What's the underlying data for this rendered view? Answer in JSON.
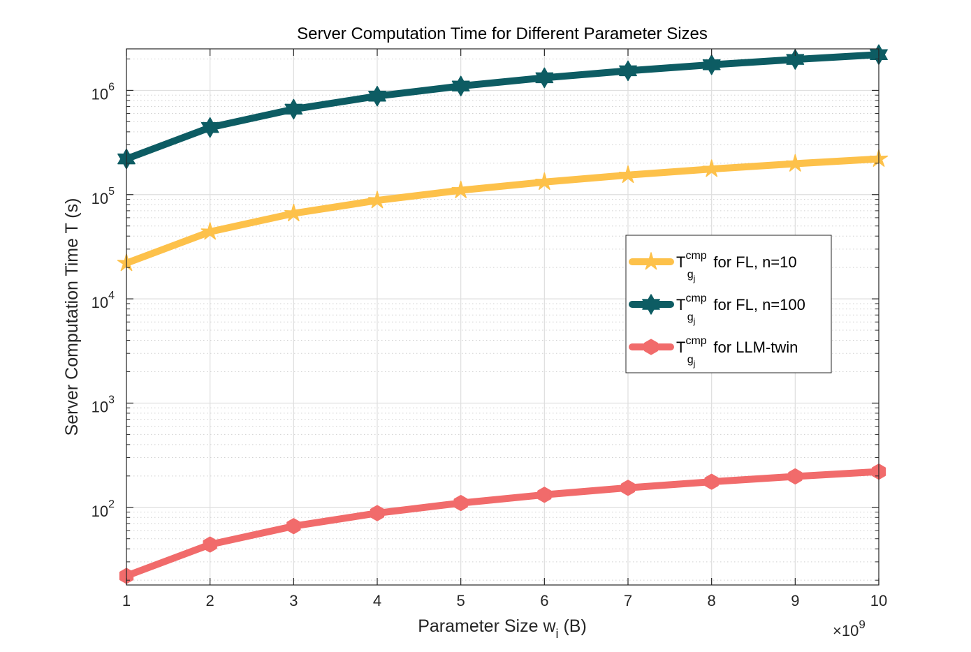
{
  "chart_data": {
    "type": "line",
    "title": "Server Computation Time for Different Parameter Sizes",
    "xlabel": {
      "main": "Parameter Size w",
      "sub": "i",
      "unit": " (B)"
    },
    "ylabel": "Server Computation Time T (s)",
    "x_multiplier": {
      "prefix": "×10",
      "exponent": "9"
    },
    "xlim": [
      1,
      10
    ],
    "ylim": [
      18,
      2500000
    ],
    "yscale": "log",
    "grid": true,
    "x_ticks": [
      1,
      2,
      3,
      4,
      5,
      6,
      7,
      8,
      9,
      10
    ],
    "x_tick_labels": [
      "1",
      "2",
      "3",
      "4",
      "5",
      "6",
      "7",
      "8",
      "9",
      "10"
    ],
    "y_ticks": [
      100,
      1000,
      10000,
      100000,
      1000000
    ],
    "y_tick_labels": [
      {
        "base": "10",
        "exp": "2"
      },
      {
        "base": "10",
        "exp": "3"
      },
      {
        "base": "10",
        "exp": "4"
      },
      {
        "base": "10",
        "exp": "5"
      },
      {
        "base": "10",
        "exp": "6"
      }
    ],
    "x": [
      1,
      2,
      3,
      4,
      5,
      6,
      7,
      8,
      9,
      10
    ],
    "series": [
      {
        "name": "FL, n=10",
        "legend": {
          "T": "T",
          "sup": "cmp",
          "sub": "g",
          "subsub": "j",
          "rest": " for FL, n=10"
        },
        "color": "#FDC14A",
        "marker": "star",
        "values": [
          22000,
          44000,
          66000,
          88000,
          110000,
          132000,
          154000,
          176000,
          198000,
          220000
        ]
      },
      {
        "name": "FL, n=100",
        "legend": {
          "T": "T",
          "sup": "cmp",
          "sub": "g",
          "subsub": "j",
          "rest": " for FL, n=100"
        },
        "color": "#0D5C63",
        "marker": "hexagram",
        "values": [
          220000,
          440000,
          660000,
          880000,
          1100000,
          1320000,
          1540000,
          1760000,
          1980000,
          2200000
        ]
      },
      {
        "name": "LLM-twin",
        "legend": {
          "T": "T",
          "sup": "cmp",
          "sub": "g",
          "subsub": "j",
          "rest": " for LLM-twin"
        },
        "color": "#F16B6B",
        "marker": "hexagon",
        "values": [
          22,
          44,
          66,
          88,
          110,
          132,
          154,
          176,
          198,
          220
        ]
      }
    ],
    "legend_position": "center-right"
  }
}
